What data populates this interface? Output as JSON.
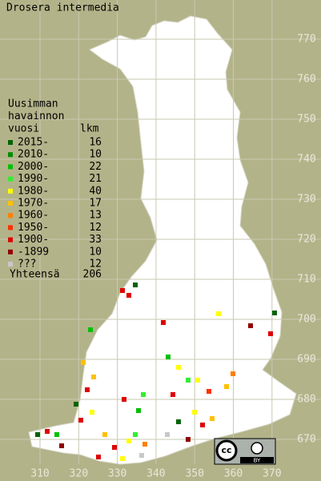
{
  "title": "Drosera intermedia",
  "legend": {
    "heading": [
      "Uusimman",
      "havainnon",
      "vuosi"
    ],
    "count_heading": "lkm",
    "rows": [
      {
        "label": "2015-",
        "count": "16",
        "color": "#006400"
      },
      {
        "label": "2010-",
        "count": "10",
        "color": "#008c00"
      },
      {
        "label": "2000-",
        "count": "22",
        "color": "#00c000"
      },
      {
        "label": "1990-",
        "count": "21",
        "color": "#33ee33"
      },
      {
        "label": "1980-",
        "count": "40",
        "color": "#ffff00"
      },
      {
        "label": "1970-",
        "count": "17",
        "color": "#ffc000"
      },
      {
        "label": "1960-",
        "count": "13",
        "color": "#ff8000"
      },
      {
        "label": "1950-",
        "count": "12",
        "color": "#ff3000"
      },
      {
        "label": "1900-",
        "count": "33",
        "color": "#dd0000"
      },
      {
        "label": "-1899",
        "count": "10",
        "color": "#900000"
      },
      {
        "label": "???",
        "count": "12",
        "color": "#c8c8c8"
      }
    ],
    "total_label": "Yhteensä",
    "total": "206"
  },
  "grid": {
    "xticks": [
      310,
      320,
      330,
      340,
      350,
      360,
      370
    ],
    "yticks": [
      670,
      680,
      690,
      700,
      710,
      720,
      730,
      740,
      750,
      760,
      770
    ]
  },
  "badge": {
    "icon": "cc",
    "label": "BY"
  }
}
